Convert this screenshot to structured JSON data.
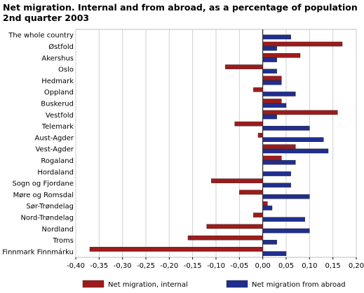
{
  "chart_data": {
    "type": "bar",
    "orientation": "horizontal",
    "title_lines": [
      "Net migration. Internal and from abroad, as a percentage of population",
      "2nd quarter 2003"
    ],
    "categories": [
      "The whole country",
      "Østfold",
      "Akershus",
      "Oslo",
      "Hedmark",
      "Oppland",
      "Buskerud",
      "Vestfold",
      "Telemark",
      "Aust-Agder",
      "Vest-Agder",
      "Rogaland",
      "Hordaland",
      "Sogn og Fjordane",
      "Møre og Romsdal",
      "Sør-Trøndelag",
      "Nord-Trøndelag",
      "Nordland",
      "Troms",
      "Finnmark Finnmárku"
    ],
    "series": [
      {
        "name": "Net migration, internal",
        "color": "#9e1b1b",
        "values": [
          0,
          0.17,
          0.08,
          -0.08,
          0.04,
          -0.02,
          0.04,
          0.16,
          -0.06,
          -0.01,
          0.07,
          0.04,
          0,
          -0.11,
          -0.05,
          0.01,
          -0.02,
          -0.12,
          -0.16,
          -0.37
        ]
      },
      {
        "name": "Net migration from abroad",
        "color": "#1f2e8f",
        "values": [
          0.06,
          0.03,
          0.03,
          0.03,
          0.04,
          0.07,
          0.05,
          0.03,
          0.1,
          0.13,
          0.14,
          0.07,
          0.06,
          0.06,
          0.1,
          0.02,
          0.09,
          0.1,
          0.03,
          0.05
        ]
      }
    ],
    "xlim": [
      -0.4,
      0.2
    ],
    "xticks": [
      -0.4,
      -0.35,
      -0.3,
      -0.25,
      -0.2,
      -0.15,
      -0.1,
      -0.05,
      0.0,
      0.05,
      0.1,
      0.15,
      0.2
    ],
    "xtick_labels": [
      "-0,40",
      "-0,35",
      "-0,30",
      "-0,25",
      "-0,20",
      "-0,15",
      "-0,10",
      "-0,05",
      "0,00",
      "0,05",
      "0,10",
      "0,15",
      "0,20"
    ],
    "grid": "vertical",
    "legend": "bottom"
  }
}
